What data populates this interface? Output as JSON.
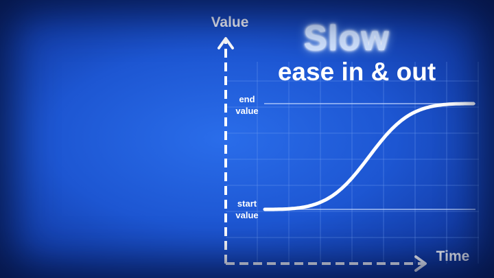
{
  "title": {
    "main": "Slow",
    "subtitle": "ease in & out"
  },
  "axes": {
    "y_label": "Value",
    "x_label": "Time"
  },
  "levels": {
    "end": [
      "end",
      "value"
    ],
    "start": [
      "start",
      "value"
    ]
  },
  "curve": {
    "type": "ease-in-out",
    "start_value": 0,
    "end_value": 1
  },
  "colors": {
    "background": "#1d56d2",
    "line": "#ffffff",
    "grid": "#5f8fe8"
  }
}
